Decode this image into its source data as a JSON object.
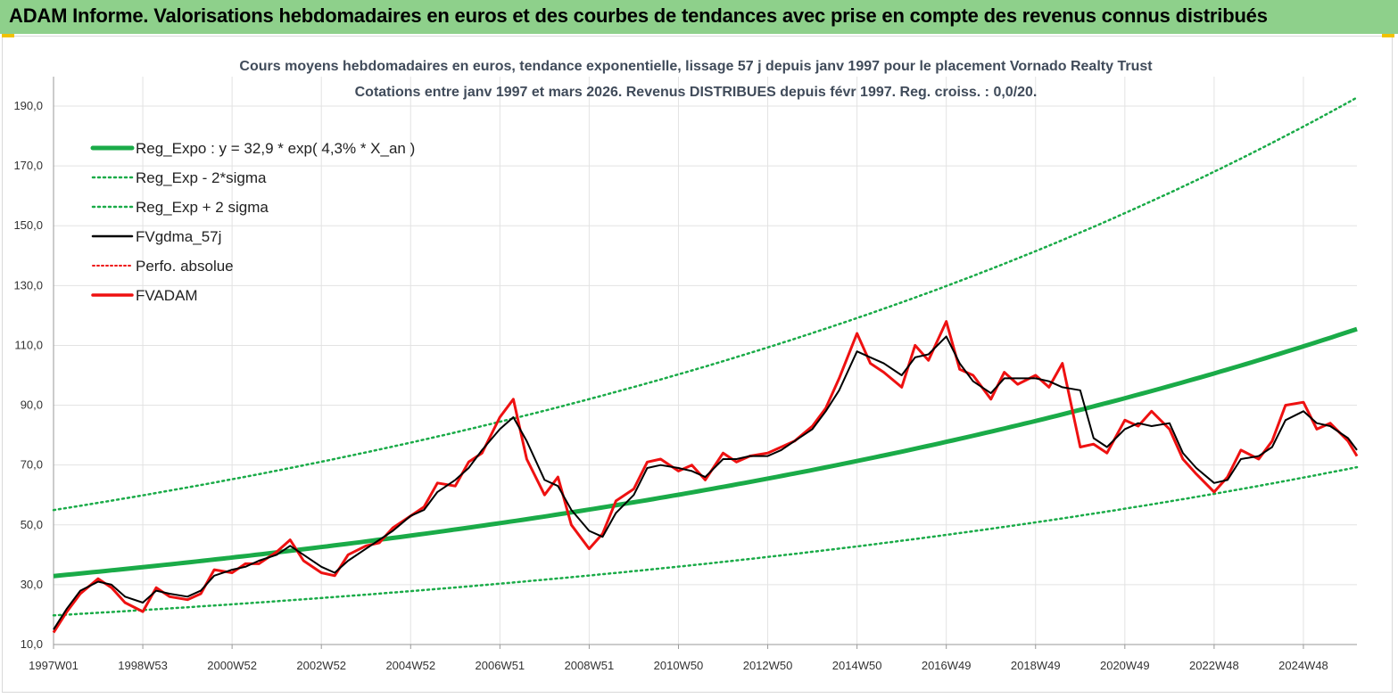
{
  "banner": {
    "title": "ADAM Informe. Valorisations hebdomadaires en euros et des courbes de tendances avec prise en compte des revenus connus distribués"
  },
  "chart_data": {
    "type": "line",
    "title_lines": [
      "Cours moyens hebdomadaires en euros, tendance exponentielle, lissage 57 j depuis janv 1997 pour le placement Vornado Realty Trust",
      "Cotations entre janv 1997 et mars 2026. Revenus DISTRIBUES depuis févr 1997. Reg. croiss. : 0,0/20."
    ],
    "xlabel": "",
    "ylabel": "",
    "x_range": [
      1997.0,
      2026.2
    ],
    "ylim": [
      10,
      195
    ],
    "y_ticks": [
      "10,0",
      "30,0",
      "50,0",
      "70,0",
      "90,0",
      "110,0",
      "130,0",
      "150,0",
      "170,0",
      "190,0"
    ],
    "y_tick_values": [
      10,
      30,
      50,
      70,
      90,
      110,
      130,
      150,
      170,
      190
    ],
    "x_ticks": [
      {
        "label": "1997W01",
        "x": 1997.0
      },
      {
        "label": "1998W53",
        "x": 1999.0
      },
      {
        "label": "2000W52",
        "x": 2001.0
      },
      {
        "label": "2002W52",
        "x": 2003.0
      },
      {
        "label": "2004W52",
        "x": 2005.0
      },
      {
        "label": "2006W51",
        "x": 2007.0
      },
      {
        "label": "2008W51",
        "x": 2009.0
      },
      {
        "label": "2010W50",
        "x": 2011.0
      },
      {
        "label": "2012W50",
        "x": 2013.0
      },
      {
        "label": "2014W50",
        "x": 2015.0
      },
      {
        "label": "2016W49",
        "x": 2017.0
      },
      {
        "label": "2018W49",
        "x": 2019.0
      },
      {
        "label": "2020W49",
        "x": 2021.0
      },
      {
        "label": "2022W48",
        "x": 2023.0
      },
      {
        "label": "2024W48",
        "x": 2025.0
      }
    ],
    "grid": true,
    "legend_position": "top-left",
    "colors": {
      "green": "#1aab48",
      "black": "#000000",
      "red": "#ee1111"
    },
    "regression": {
      "a": 32.9,
      "rate_pct": 4.3,
      "minus_2sigma_factor": 0.6,
      "plus_2sigma_factor": 1.67
    },
    "series": [
      {
        "name": "Reg_Expo : y = 32,9 * exp( 4,3% *  X_an )",
        "style": "thick-green"
      },
      {
        "name": "Reg_Exp - 2*sigma",
        "style": "dotted-green"
      },
      {
        "name": "Reg_Exp + 2 sigma",
        "style": "dotted-green"
      },
      {
        "name": "FVgdma_57j",
        "style": "black",
        "x": [
          1997.0,
          1997.3,
          1997.6,
          1998.0,
          1998.3,
          1998.6,
          1999.0,
          1999.3,
          1999.6,
          2000.0,
          2000.3,
          2000.6,
          2001.0,
          2001.3,
          2001.6,
          2002.0,
          2002.3,
          2002.6,
          2003.0,
          2003.3,
          2003.6,
          2004.0,
          2004.3,
          2004.6,
          2005.0,
          2005.3,
          2005.6,
          2006.0,
          2006.3,
          2006.6,
          2007.0,
          2007.3,
          2007.6,
          2008.0,
          2008.3,
          2008.6,
          2009.0,
          2009.3,
          2009.6,
          2010.0,
          2010.3,
          2010.6,
          2011.0,
          2011.3,
          2011.6,
          2012.0,
          2012.3,
          2012.6,
          2013.0,
          2013.3,
          2013.6,
          2014.0,
          2014.3,
          2014.6,
          2015.0,
          2015.3,
          2015.6,
          2016.0,
          2016.3,
          2016.6,
          2017.0,
          2017.3,
          2017.6,
          2018.0,
          2018.3,
          2018.6,
          2019.0,
          2019.3,
          2019.6,
          2020.0,
          2020.3,
          2020.6,
          2021.0,
          2021.3,
          2021.6,
          2022.0,
          2022.3,
          2022.6,
          2023.0,
          2023.3,
          2023.6,
          2024.0,
          2024.3,
          2024.6,
          2025.0,
          2025.3,
          2025.6,
          2026.0,
          2026.2
        ],
        "y": [
          15,
          22,
          28,
          31,
          30,
          26,
          24,
          28,
          27,
          26,
          28,
          33,
          35,
          36,
          38,
          40,
          43,
          40,
          36,
          34,
          38,
          42,
          45,
          48,
          53,
          55,
          61,
          65,
          69,
          75,
          82,
          86,
          78,
          65,
          63,
          55,
          48,
          46,
          54,
          60,
          69,
          70,
          69,
          68,
          66,
          72,
          72,
          73,
          73,
          75,
          78,
          82,
          88,
          95,
          108,
          106,
          104,
          100,
          106,
          107,
          113,
          104,
          98,
          94,
          99,
          99,
          99,
          98,
          96,
          95,
          79,
          76,
          82,
          84,
          83,
          84,
          74,
          69,
          64,
          65,
          72,
          73,
          76,
          85,
          88,
          84,
          83,
          79,
          75
        ]
      },
      {
        "name": "Perfo. absolue",
        "style": "dotted-red"
      },
      {
        "name": "FVADAM",
        "style": "thick-red",
        "x": [
          1997.0,
          1997.3,
          1997.6,
          1998.0,
          1998.3,
          1998.6,
          1999.0,
          1999.3,
          1999.6,
          2000.0,
          2000.3,
          2000.6,
          2001.0,
          2001.3,
          2001.6,
          2002.0,
          2002.3,
          2002.6,
          2003.0,
          2003.3,
          2003.6,
          2004.0,
          2004.3,
          2004.6,
          2005.0,
          2005.3,
          2005.6,
          2006.0,
          2006.3,
          2006.6,
          2007.0,
          2007.3,
          2007.6,
          2008.0,
          2008.3,
          2008.6,
          2009.0,
          2009.3,
          2009.6,
          2010.0,
          2010.3,
          2010.6,
          2011.0,
          2011.3,
          2011.6,
          2012.0,
          2012.3,
          2012.6,
          2013.0,
          2013.3,
          2013.6,
          2014.0,
          2014.3,
          2014.6,
          2015.0,
          2015.3,
          2015.6,
          2016.0,
          2016.3,
          2016.6,
          2017.0,
          2017.3,
          2017.6,
          2018.0,
          2018.3,
          2018.6,
          2019.0,
          2019.3,
          2019.6,
          2020.0,
          2020.3,
          2020.6,
          2021.0,
          2021.3,
          2021.6,
          2022.0,
          2022.3,
          2022.6,
          2023.0,
          2023.3,
          2023.6,
          2024.0,
          2024.3,
          2024.6,
          2025.0,
          2025.3,
          2025.6,
          2026.0,
          2026.2
        ],
        "y": [
          14,
          21,
          27,
          32,
          29,
          24,
          21,
          29,
          26,
          25,
          27,
          35,
          34,
          37,
          37,
          41,
          45,
          38,
          34,
          33,
          40,
          43,
          44,
          49,
          53,
          56,
          64,
          63,
          71,
          74,
          86,
          92,
          72,
          60,
          66,
          50,
          42,
          47,
          58,
          62,
          71,
          72,
          68,
          70,
          65,
          74,
          71,
          73,
          74,
          76,
          78,
          83,
          89,
          99,
          114,
          104,
          101,
          96,
          110,
          105,
          118,
          102,
          100,
          92,
          101,
          97,
          100,
          96,
          104,
          76,
          77,
          74,
          85,
          83,
          88,
          82,
          72,
          67,
          61,
          66,
          75,
          72,
          78,
          90,
          91,
          82,
          84,
          78,
          73
        ]
      }
    ]
  }
}
